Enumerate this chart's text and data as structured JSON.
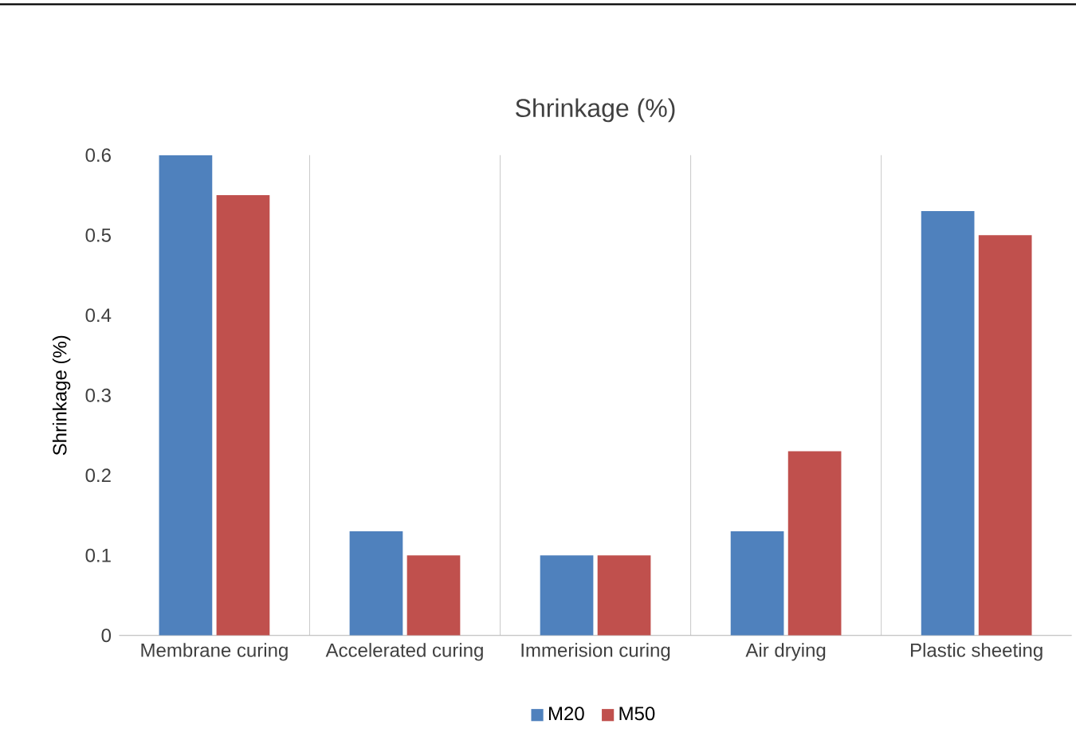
{
  "chart_data": {
    "type": "bar",
    "title": "Shrinkage (%)",
    "ylabel": "Shrinkage (%)",
    "categories": [
      "Membrane curing",
      "Accelerated curing",
      "Immerision curing",
      "Air drying",
      "Plastic sheeting"
    ],
    "series": [
      {
        "name": "M20",
        "color": "#4f81bd",
        "values": [
          0.6,
          0.13,
          0.1,
          0.13,
          0.53
        ]
      },
      {
        "name": "M50",
        "color": "#c0504d",
        "values": [
          0.55,
          0.1,
          0.1,
          0.23,
          0.5
        ]
      }
    ],
    "ylim": [
      0,
      0.6
    ],
    "yticks": [
      0,
      0.1,
      0.2,
      0.3,
      0.4,
      0.5,
      0.6
    ],
    "grid": "x",
    "legend": "bottom"
  }
}
